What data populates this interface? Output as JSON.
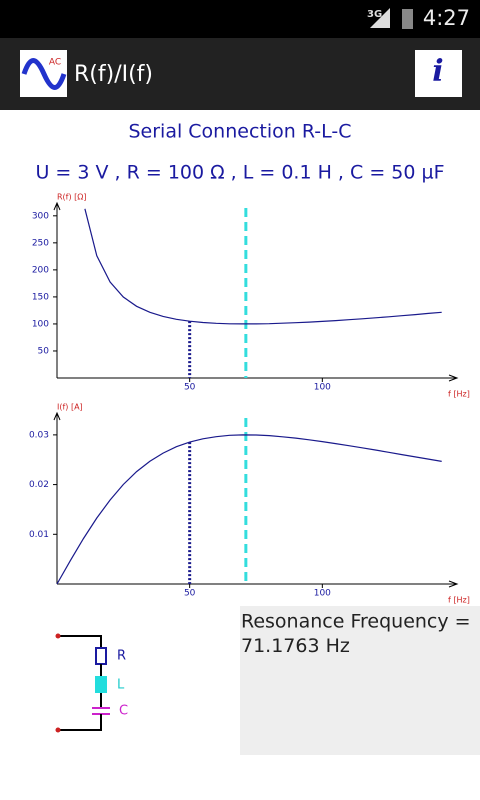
{
  "status_bar": {
    "network": "3G",
    "time": "4:27"
  },
  "app_bar": {
    "icon_text": "AC",
    "title": "R(f)/I(f)",
    "info": "i"
  },
  "header": {
    "title": "Serial Connection R-L-C",
    "params": "U = 3 V , R = 100 Ω , L = 0.1 H , C = 50 µF"
  },
  "chart_data": [
    {
      "type": "line",
      "y_label": "R(f) [Ω]",
      "x_label": "f [Hz]",
      "color": "#1a1a8c",
      "x": [
        10.5,
        15,
        20,
        25,
        30,
        35,
        40,
        45,
        50,
        55,
        60,
        65,
        70,
        75,
        80,
        85,
        90,
        95,
        100,
        105,
        110,
        115,
        120,
        125,
        130,
        135,
        140,
        145
      ],
      "values": [
        313.0,
        226.1,
        177.5,
        149.9,
        132.7,
        121.5,
        113.9,
        108.6,
        105.1,
        102.7,
        101.2,
        100.3,
        100.0,
        100.1,
        100.5,
        101.3,
        102.2,
        103.4,
        104.7,
        106.2,
        107.8,
        109.5,
        111.3,
        113.2,
        115.2,
        117.3,
        119.4,
        121.6
      ],
      "xlim": [
        0,
        150
      ],
      "ylim": [
        0,
        320
      ],
      "xticks": [
        50,
        100
      ],
      "yticks": [
        50,
        100,
        150,
        200,
        250,
        300
      ],
      "guide_x": 50
    },
    {
      "type": "line",
      "y_label": "I(f) [A]",
      "x_label": "f [Hz]",
      "color": "#1a1a8c",
      "x": [
        0,
        5,
        10,
        15,
        20,
        25,
        30,
        35,
        40,
        45,
        50,
        55,
        60,
        65,
        70,
        75,
        80,
        85,
        90,
        95,
        100,
        105,
        110,
        115,
        120,
        125,
        130,
        135,
        140,
        145
      ],
      "values": [
        0,
        0.00468,
        0.00915,
        0.01327,
        0.0169,
        0.02001,
        0.02261,
        0.02469,
        0.02634,
        0.02762,
        0.02854,
        0.02921,
        0.02964,
        0.02991,
        0.03,
        0.02997,
        0.02985,
        0.02961,
        0.02935,
        0.02901,
        0.02865,
        0.02825,
        0.02783,
        0.0274,
        0.02695,
        0.0265,
        0.02604,
        0.02558,
        0.02513,
        0.02467
      ],
      "xlim": [
        0,
        150
      ],
      "ylim": [
        0,
        0.034
      ],
      "xticks": [
        50,
        100
      ],
      "yticks": [
        0.01,
        0.02,
        0.03
      ],
      "guide_x": 50
    }
  ],
  "circuit": {
    "r": "R",
    "l": "L",
    "c": "C"
  },
  "result": {
    "label": "Resonance Frequency =",
    "value": 71.1763,
    "unit": "Hz"
  }
}
